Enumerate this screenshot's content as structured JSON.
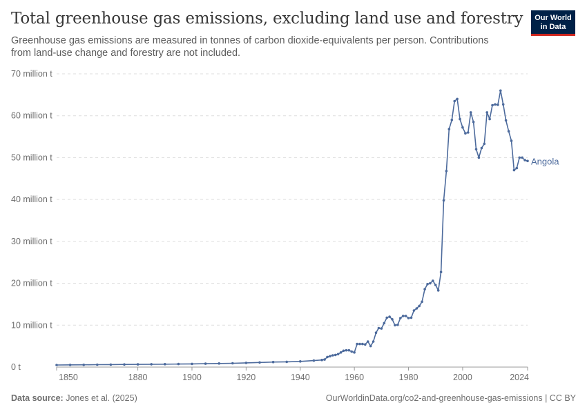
{
  "header": {
    "title": "Total greenhouse gas emissions, excluding land use and forestry",
    "subtitle": "Greenhouse gas emissions are measured in tonnes of carbon dioxide-equivalents per person. Contributions from land-use change and forestry are not included."
  },
  "logo": {
    "line1": "Our World",
    "line2": "in Data"
  },
  "footer": {
    "source_label": "Data source:",
    "source_value": "Jones et al. (2025)",
    "link": "OurWorldinData.org/co2-and-greenhouse-gas-emissions | CC BY"
  },
  "colors": {
    "series": "#4c6a9c",
    "grid": "#dddddd",
    "axis": "#999999"
  },
  "chart_data": {
    "type": "line",
    "title": "Total greenhouse gas emissions, excluding land use and forestry",
    "ylim": [
      0,
      70
    ],
    "xlim": [
      1850,
      2024
    ],
    "y_ticks": [
      {
        "value": 0,
        "label": "0 t"
      },
      {
        "value": 10,
        "label": "10 million t"
      },
      {
        "value": 20,
        "label": "20 million t"
      },
      {
        "value": 30,
        "label": "30 million t"
      },
      {
        "value": 40,
        "label": "40 million t"
      },
      {
        "value": 50,
        "label": "50 million t"
      },
      {
        "value": 60,
        "label": "60 million t"
      },
      {
        "value": 70,
        "label": "70 million t"
      }
    ],
    "x_ticks": [
      1850,
      1880,
      1900,
      1920,
      1940,
      1960,
      1980,
      2000,
      2024
    ],
    "grid": "horizontal dashed",
    "series": [
      {
        "name": "Angola",
        "x": [
          1850,
          1855,
          1860,
          1865,
          1870,
          1875,
          1880,
          1885,
          1890,
          1895,
          1900,
          1905,
          1910,
          1915,
          1920,
          1925,
          1930,
          1935,
          1940,
          1945,
          1948,
          1949,
          1950,
          1951,
          1952,
          1953,
          1954,
          1955,
          1956,
          1957,
          1958,
          1959,
          1960,
          1961,
          1962,
          1963,
          1964,
          1965,
          1966,
          1967,
          1968,
          1969,
          1970,
          1971,
          1972,
          1973,
          1974,
          1975,
          1976,
          1977,
          1978,
          1979,
          1980,
          1981,
          1982,
          1983,
          1984,
          1985,
          1986,
          1987,
          1988,
          1989,
          1990,
          1991,
          1992,
          1993,
          1994,
          1995,
          1996,
          1997,
          1998,
          1999,
          2000,
          2001,
          2002,
          2003,
          2004,
          2005,
          2006,
          2007,
          2008,
          2009,
          2010,
          2011,
          2012,
          2013,
          2014,
          2015,
          2016,
          2017,
          2018,
          2019,
          2020,
          2021,
          2022,
          2023,
          2024
        ],
        "y": [
          0.5,
          0.52,
          0.55,
          0.58,
          0.6,
          0.62,
          0.65,
          0.68,
          0.7,
          0.72,
          0.75,
          0.8,
          0.85,
          0.9,
          1.0,
          1.1,
          1.2,
          1.25,
          1.35,
          1.55,
          1.7,
          1.8,
          2.4,
          2.6,
          2.8,
          2.9,
          3.1,
          3.5,
          3.9,
          4.0,
          4.0,
          3.7,
          3.5,
          5.5,
          5.5,
          5.5,
          5.4,
          6.1,
          5.0,
          6.1,
          8.2,
          9.3,
          9.2,
          10.5,
          11.8,
          12.0,
          11.4,
          10.0,
          10.1,
          11.7,
          12.2,
          12.2,
          11.7,
          11.8,
          13.5,
          14.0,
          14.6,
          15.6,
          18.6,
          19.8,
          20.0,
          20.6,
          19.6,
          18.3,
          22.7,
          39.8,
          46.8,
          56.8,
          59.0,
          63.5,
          64.0,
          59.2,
          57.2,
          55.8,
          56.0,
          60.8,
          58.5,
          52.0,
          50.0,
          52.3,
          53.3,
          60.8,
          59.2,
          62.5,
          62.7,
          62.6,
          66.0,
          62.7,
          58.9,
          56.3,
          54.0,
          47.0,
          47.5,
          50.0,
          50.0,
          49.4,
          49.2
        ]
      }
    ]
  }
}
